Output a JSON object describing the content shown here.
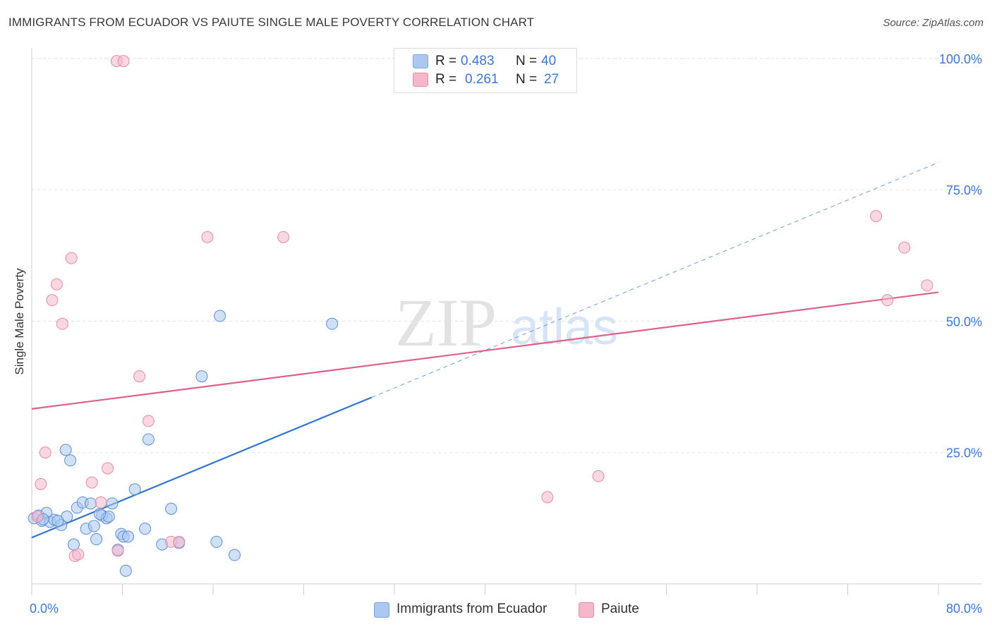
{
  "header": {
    "title": "IMMIGRANTS FROM ECUADOR VS PAIUTE SINGLE MALE POVERTY CORRELATION CHART",
    "source": "Source: ZipAtlas.com"
  },
  "watermark": {
    "zip": "ZIP",
    "atlas": "atlas"
  },
  "stats": [
    {
      "r_label": "R =",
      "r_value": "0.483",
      "n_label": "N =",
      "n_value": "40",
      "color": "#aac8f0"
    },
    {
      "r_label": "R =",
      "r_value": "0.261",
      "n_label": "N =",
      "n_value": "27",
      "color": "#f5b8cb"
    }
  ],
  "legend": [
    {
      "label": "Immigrants from Ecuador",
      "color": "#aac8f0"
    },
    {
      "label": "Paiute",
      "color": "#f5b8cb"
    }
  ],
  "chart_data": {
    "type": "scatter",
    "title": "IMMIGRANTS FROM ECUADOR VS PAIUTE SINGLE MALE POVERTY CORRELATION CHART",
    "xlabel": "",
    "ylabel": "Single Male Poverty",
    "xlim": [
      0,
      80
    ],
    "ylim": [
      0,
      102
    ],
    "x_tick_labels": [
      "0.0%",
      "80.0%"
    ],
    "y_tick_values": [
      25,
      50,
      75,
      100
    ],
    "y_tick_labels": [
      "25.0%",
      "50.0%",
      "75.0%",
      "100.0%"
    ],
    "grid": true,
    "legend_position": "bottom-center",
    "series": [
      {
        "name": "Immigrants from Ecuador",
        "color": "#5a8fd8",
        "fill": "#aac8f0",
        "line_color": "#2f76d2",
        "points": [
          [
            0.2,
            12.5
          ],
          [
            0.6,
            13.0
          ],
          [
            0.9,
            12.0
          ],
          [
            1.3,
            13.5
          ],
          [
            1.6,
            11.8
          ],
          [
            2.0,
            12.2
          ],
          [
            2.6,
            11.2
          ],
          [
            3.1,
            12.8
          ],
          [
            3.0,
            25.5
          ],
          [
            3.4,
            23.5
          ],
          [
            3.7,
            7.5
          ],
          [
            4.0,
            14.5
          ],
          [
            4.5,
            15.5
          ],
          [
            4.8,
            10.5
          ],
          [
            5.2,
            15.3
          ],
          [
            5.5,
            11.0
          ],
          [
            5.7,
            8.5
          ],
          [
            6.2,
            13.0
          ],
          [
            6.6,
            12.5
          ],
          [
            6.8,
            12.8
          ],
          [
            7.1,
            15.3
          ],
          [
            7.6,
            6.5
          ],
          [
            7.9,
            9.5
          ],
          [
            8.1,
            9.0
          ],
          [
            8.3,
            2.5
          ],
          [
            8.5,
            9.0
          ],
          [
            9.1,
            18.0
          ],
          [
            10.0,
            10.5
          ],
          [
            10.3,
            27.5
          ],
          [
            11.5,
            7.5
          ],
          [
            12.3,
            14.3
          ],
          [
            13.0,
            7.8
          ],
          [
            15.0,
            39.5
          ],
          [
            16.3,
            8.0
          ],
          [
            16.6,
            51.0
          ],
          [
            17.9,
            5.5
          ],
          [
            26.5,
            49.5
          ],
          [
            1.0,
            12.3
          ],
          [
            2.3,
            12.0
          ],
          [
            6.0,
            13.3
          ]
        ],
        "trend": {
          "x0": 0,
          "y0": 8.8,
          "x1": 30,
          "y1": 35.5,
          "dash_to_x": 80,
          "dash_to_y": 80.2
        }
      },
      {
        "name": "Paiute",
        "color": "#e98aa6",
        "fill": "#f5b8cb",
        "line_color": "#e0608a",
        "points": [
          [
            0.5,
            12.8
          ],
          [
            0.8,
            19.0
          ],
          [
            1.2,
            25.0
          ],
          [
            1.8,
            54.0
          ],
          [
            2.2,
            57.0
          ],
          [
            2.7,
            49.5
          ],
          [
            3.5,
            62.0
          ],
          [
            3.8,
            5.3
          ],
          [
            4.1,
            5.6
          ],
          [
            5.3,
            19.3
          ],
          [
            6.1,
            15.5
          ],
          [
            6.7,
            22.0
          ],
          [
            7.5,
            99.5
          ],
          [
            7.6,
            6.3
          ],
          [
            8.1,
            99.5
          ],
          [
            9.5,
            39.5
          ],
          [
            10.3,
            31.0
          ],
          [
            12.3,
            8.0
          ],
          [
            13.0,
            8.0
          ],
          [
            15.5,
            66.0
          ],
          [
            22.2,
            66.0
          ],
          [
            45.5,
            16.5
          ],
          [
            50.0,
            20.5
          ],
          [
            74.5,
            70.0
          ],
          [
            75.5,
            54.0
          ],
          [
            77.0,
            64.0
          ],
          [
            79.0,
            56.8
          ]
        ],
        "trend": {
          "x0": 0,
          "y0": 33.3,
          "x1": 80,
          "y1": 55.5
        }
      }
    ]
  }
}
